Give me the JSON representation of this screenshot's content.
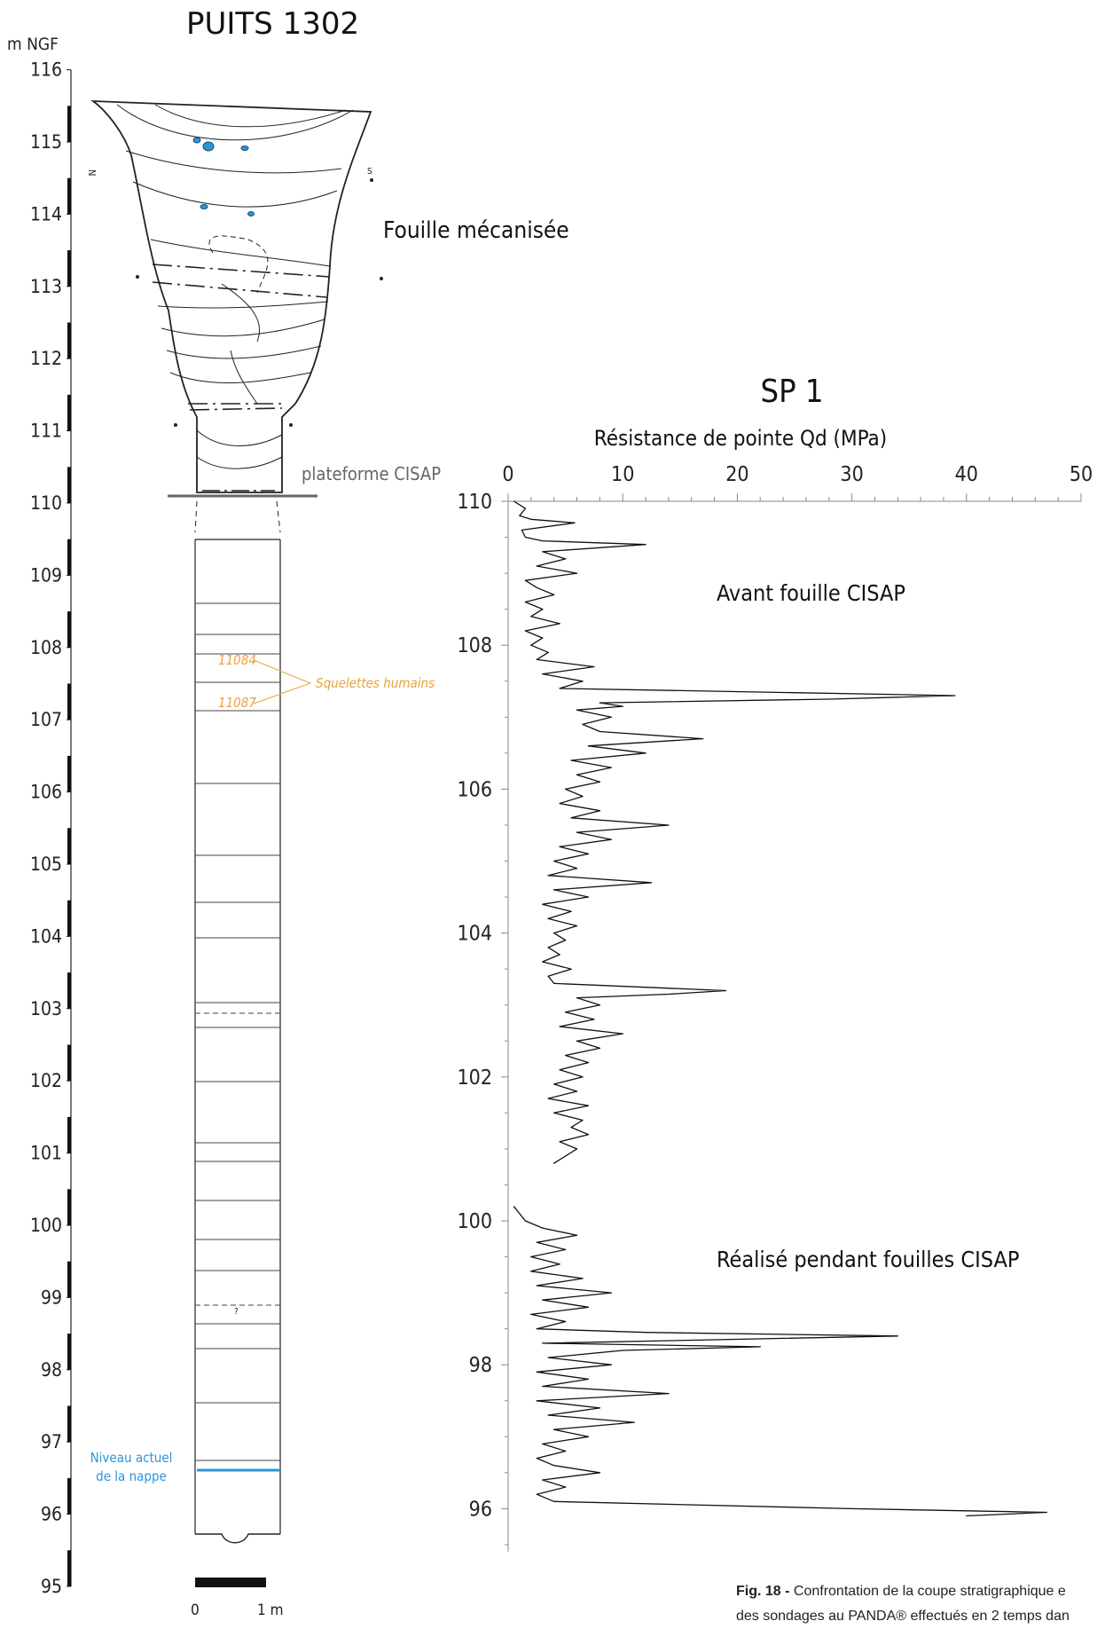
{
  "figure": {
    "left_title": "PUITS 1302",
    "axis_unit": "m NGF",
    "left_ticks": [
      "95",
      "96",
      "97",
      "98",
      "99",
      "100",
      "101",
      "102",
      "103",
      "104",
      "105",
      "106",
      "107",
      "108",
      "109",
      "110",
      "111",
      "112",
      "113",
      "114",
      "115",
      "116"
    ],
    "orientation_n": "N",
    "orientation_s": "S",
    "fouille_label": "Fouille mécanisée",
    "plateforme_label": "plateforme CISAP",
    "skeleton_ids": [
      "11084",
      "11087"
    ],
    "skeleton_label": "Squelettes humains",
    "water_label_1": "Niveau actuel",
    "water_label_2": "de la nappe",
    "question_mark": "?",
    "scale_0": "0",
    "scale_1": "1 m",
    "colors": {
      "line": "#222222",
      "orange": "#e9a23b",
      "blue": "#2b95d6",
      "grey": "#666666"
    }
  },
  "chart_data": {
    "type": "line",
    "title": "SP 1",
    "xlabel": "Résistance de pointe Qd (MPa)",
    "ylabel": "",
    "xlim": [
      0,
      50
    ],
    "ylim": [
      95,
      110
    ],
    "x_ticks": [
      "0",
      "10",
      "20",
      "30",
      "40",
      "50"
    ],
    "y_ticks": [
      "110",
      "108",
      "106",
      "104",
      "102",
      "100",
      "98",
      "96"
    ],
    "annotations": [
      "Avant fouille CISAP",
      "Réalisé pendant fouilles CISAP"
    ],
    "series": [
      {
        "segment": "avant",
        "y": [
          110.0,
          109.9,
          109.8,
          109.75,
          109.7,
          109.6,
          109.5,
          109.45,
          109.4,
          109.3,
          109.2,
          109.1,
          109.0,
          108.9,
          108.8,
          108.7,
          108.6,
          108.5,
          108.4,
          108.3,
          108.2,
          108.1,
          108.0,
          107.9,
          107.8,
          107.7,
          107.6,
          107.5,
          107.4,
          107.3,
          107.25,
          107.2,
          107.15,
          107.1,
          107.0,
          106.9,
          106.8,
          106.7,
          106.6,
          106.5,
          106.4,
          106.3,
          106.2,
          106.1,
          106.0,
          105.9,
          105.8,
          105.7,
          105.6,
          105.5,
          105.4,
          105.3,
          105.2,
          105.1,
          105.0,
          104.9,
          104.8,
          104.7,
          104.6,
          104.5,
          104.4,
          104.3,
          104.2,
          104.1,
          104.0,
          103.9,
          103.8,
          103.7,
          103.6,
          103.5,
          103.4,
          103.3,
          103.2,
          103.15,
          103.1,
          103.0,
          102.9,
          102.8,
          102.7,
          102.6,
          102.5,
          102.4,
          102.3,
          102.2,
          102.1,
          102.0,
          101.9,
          101.8,
          101.7,
          101.6,
          101.5,
          101.4,
          101.3,
          101.2,
          101.1,
          101.0,
          100.9,
          100.8
        ],
        "qd": [
          0.5,
          1.5,
          1.0,
          2.0,
          5.8,
          1.2,
          1.5,
          3.0,
          12.0,
          3.0,
          5.0,
          2.5,
          6.0,
          1.5,
          2.5,
          4.0,
          1.5,
          3.0,
          2.0,
          4.5,
          1.5,
          3.0,
          2.0,
          3.5,
          2.5,
          7.5,
          3.0,
          6.5,
          4.5,
          39.0,
          28.0,
          8.0,
          10.0,
          6.0,
          9.0,
          6.5,
          8.0,
          17.0,
          7.0,
          12.0,
          5.5,
          9.0,
          6.0,
          8.0,
          5.0,
          6.5,
          4.5,
          8.0,
          5.5,
          14.0,
          6.0,
          9.0,
          4.5,
          7.0,
          4.0,
          6.0,
          3.5,
          12.5,
          4.0,
          7.0,
          3.0,
          5.5,
          3.5,
          6.0,
          4.0,
          5.0,
          3.5,
          4.5,
          3.0,
          5.5,
          3.5,
          4.0,
          19.0,
          14.0,
          6.0,
          8.0,
          5.0,
          7.5,
          4.5,
          10.0,
          6.0,
          8.0,
          5.0,
          7.0,
          4.5,
          6.5,
          4.0,
          6.0,
          3.5,
          7.0,
          4.0,
          6.5,
          5.5,
          7.0,
          4.5,
          6.0,
          5.0,
          4.0
        ]
      },
      {
        "segment": "pendant",
        "y": [
          100.2,
          100.0,
          99.9,
          99.8,
          99.7,
          99.6,
          99.5,
          99.4,
          99.3,
          99.2,
          99.1,
          99.0,
          98.9,
          98.8,
          98.7,
          98.6,
          98.5,
          98.45,
          98.4,
          98.3,
          98.25,
          98.2,
          98.1,
          98.0,
          97.9,
          97.8,
          97.7,
          97.6,
          97.5,
          97.4,
          97.3,
          97.2,
          97.1,
          97.0,
          96.9,
          96.8,
          96.7,
          96.6,
          96.5,
          96.4,
          96.3,
          96.2,
          96.1,
          96.0,
          95.95,
          95.9
        ],
        "qd": [
          0.5,
          1.5,
          3.0,
          6.0,
          2.5,
          5.0,
          2.0,
          4.5,
          2.0,
          6.5,
          2.5,
          9.0,
          3.0,
          7.0,
          2.0,
          5.0,
          2.5,
          12.0,
          34.0,
          3.0,
          22.0,
          10.0,
          3.5,
          9.0,
          2.5,
          7.0,
          3.0,
          14.0,
          2.5,
          8.0,
          3.5,
          11.0,
          4.0,
          7.0,
          3.0,
          5.0,
          2.5,
          4.0,
          8.0,
          3.0,
          5.0,
          2.5,
          4.0,
          30.0,
          47.0,
          40.0
        ]
      }
    ]
  },
  "caption": {
    "fig_label": "Fig. 18 -",
    "line1": "Confrontation de la coupe stratigraphique e",
    "line2": "des sondages au PANDA® effectués en 2 temps dan"
  }
}
